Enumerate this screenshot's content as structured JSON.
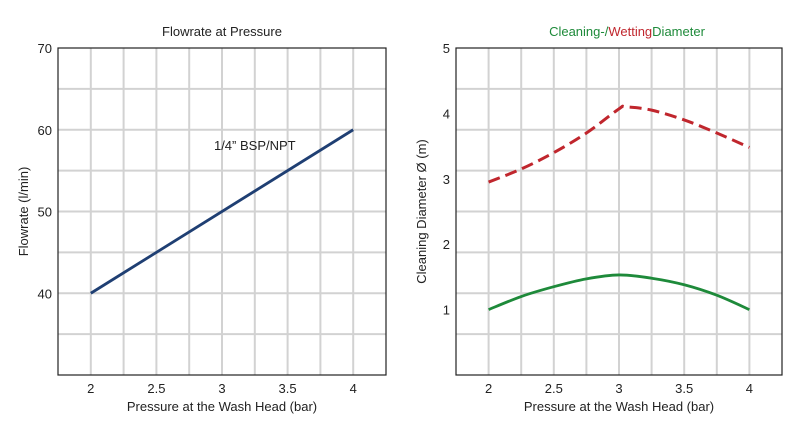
{
  "chart_data": [
    {
      "type": "line",
      "title": "Flowrate at Pressure",
      "xlabel": "Pressure at the Wash Head (bar)",
      "ylabel": "Flowrate (l/min)",
      "xlim": [
        1.75,
        4.25
      ],
      "ylim": [
        30,
        70
      ],
      "x_ticks": [
        "2",
        "2.5",
        "3",
        "3.5",
        "4"
      ],
      "y_ticks": [
        "40",
        "50",
        "60",
        "70"
      ],
      "y_tick_values": [
        40,
        50,
        60,
        70
      ],
      "grid": true,
      "annotations": [
        {
          "text": "1/4” BSP/NPT",
          "x": 3.25,
          "y": 57.5
        }
      ],
      "series": [
        {
          "color": "#1f3f73",
          "dash": "solid",
          "x": [
            2,
            4
          ],
          "y": [
            40,
            60
          ]
        }
      ]
    },
    {
      "type": "line",
      "title_parts": [
        {
          "text": "Cleaning-/",
          "color": "#1e8a3a"
        },
        {
          "text": "Wetting",
          "color": "#c0262d"
        },
        {
          "text": "Diameter",
          "color": "#1e8a3a"
        }
      ],
      "xlabel": "Pressure at the Wash Head (bar)",
      "ylabel": "Cleaning Diameter Ø (m)",
      "xlim": [
        1.75,
        4.25
      ],
      "ylim": [
        0,
        5
      ],
      "x_ticks": [
        "2",
        "2.5",
        "3",
        "3.5",
        "4"
      ],
      "y_ticks": [
        "1",
        "2",
        "3",
        "4",
        "5"
      ],
      "y_tick_values": [
        1,
        2,
        3,
        4,
        5
      ],
      "grid": true,
      "series": [
        {
          "color": "#c0262d",
          "dash": "dashed",
          "x": [
            2,
            2.25,
            2.5,
            2.75,
            3,
            3.05,
            3.25,
            3.5,
            3.75,
            4
          ],
          "y": [
            2.95,
            3.15,
            3.4,
            3.7,
            4.07,
            4.1,
            4.05,
            3.9,
            3.7,
            3.48
          ]
        },
        {
          "color": "#1e8a3a",
          "dash": "solid",
          "x": [
            2,
            2.25,
            2.5,
            2.75,
            3,
            3.25,
            3.5,
            3.75,
            4
          ],
          "y": [
            1.0,
            1.2,
            1.35,
            1.47,
            1.53,
            1.48,
            1.38,
            1.22,
            1.0
          ]
        }
      ]
    }
  ]
}
